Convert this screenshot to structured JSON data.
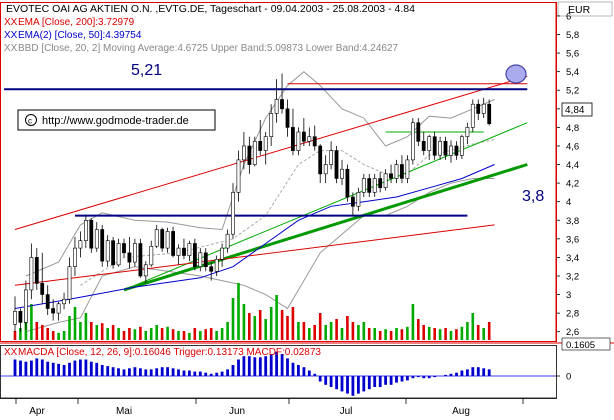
{
  "chart_data": [
    {
      "type": "candlestick",
      "title": "EVOTEC OAI AG AKTIEN O.N. ,EVTG.DE, Tageschart - 09.04.2003 - 25.08.2003 - 4.84",
      "currency": "EUR",
      "y_ticks": [
        "6",
        "5,8",
        "5,6",
        "5,4",
        "5,2",
        "5",
        "4,8",
        "4,6",
        "4,4",
        "4,2",
        "4",
        "3,8",
        "3,6",
        "3,4",
        "3,2",
        "3",
        "2,8",
        "2,6"
      ],
      "ylim": [
        2.5,
        6.15
      ],
      "x_ticks": [
        "Apr",
        "Mai",
        "Jun",
        "Jul",
        "Aug"
      ],
      "last_price_label": "4,84",
      "legend": [
        {
          "prefix": "XX",
          "text": "EMA [Close, 200]:3.72979",
          "color": "#dd0000"
        },
        {
          "prefix": "XX",
          "text": "EMA(2) [Close, 50]:4.39754",
          "color": "#0000cc"
        },
        {
          "prefix": "XX",
          "text": "BBD [Close, 20, 2] Moving Average:4.6725 Upper Band:5.09873 Lower Band:4.24627",
          "color": "#888888"
        }
      ],
      "watermark": "http://www.godmode-trader.de",
      "annotations": [
        {
          "text": "5,21",
          "level": 5.21
        },
        {
          "text": "3,8",
          "level": 3.8
        }
      ],
      "candles": [
        [
          2.68,
          2.98,
          2.6,
          2.82
        ],
        [
          2.82,
          2.85,
          2.6,
          2.7
        ],
        [
          2.7,
          3.15,
          2.62,
          3.05
        ],
        [
          3.05,
          3.55,
          2.95,
          3.4
        ],
        [
          3.4,
          3.5,
          3.05,
          3.12
        ],
        [
          3.12,
          3.45,
          2.9,
          3.0
        ],
        [
          3.0,
          3.1,
          2.78,
          2.85
        ],
        [
          2.85,
          2.95,
          2.72,
          2.8
        ],
        [
          2.8,
          2.92,
          2.72,
          2.9
        ],
        [
          2.9,
          3.02,
          2.84,
          2.95
        ],
        [
          2.95,
          3.4,
          2.9,
          3.3
        ],
        [
          3.3,
          3.62,
          3.2,
          3.5
        ],
        [
          3.5,
          3.68,
          3.4,
          3.58
        ],
        [
          3.58,
          3.85,
          3.5,
          3.8
        ],
        [
          3.8,
          3.82,
          3.45,
          3.5
        ],
        [
          3.5,
          3.78,
          3.46,
          3.7
        ],
        [
          3.7,
          3.75,
          3.3,
          3.36
        ],
        [
          3.36,
          3.64,
          3.3,
          3.58
        ],
        [
          3.58,
          3.62,
          3.28,
          3.32
        ],
        [
          3.32,
          3.6,
          3.3,
          3.55
        ],
        [
          3.55,
          3.6,
          3.4,
          3.45
        ],
        [
          3.45,
          3.62,
          3.28,
          3.35
        ],
        [
          3.35,
          3.6,
          3.3,
          3.55
        ],
        [
          3.55,
          3.6,
          3.18,
          3.2
        ],
        [
          3.2,
          3.36,
          3.12,
          3.32
        ],
        [
          3.32,
          3.58,
          3.3,
          3.52
        ],
        [
          3.52,
          3.75,
          3.5,
          3.7
        ],
        [
          3.7,
          3.72,
          3.46,
          3.5
        ],
        [
          3.5,
          3.72,
          3.45,
          3.68
        ],
        [
          3.68,
          3.73,
          3.4,
          3.42
        ],
        [
          3.42,
          3.54,
          3.32,
          3.5
        ],
        [
          3.5,
          3.6,
          3.38,
          3.42
        ],
        [
          3.42,
          3.58,
          3.36,
          3.55
        ],
        [
          3.55,
          3.6,
          3.26,
          3.3
        ],
        [
          3.3,
          3.5,
          3.25,
          3.45
        ],
        [
          3.45,
          3.5,
          3.25,
          3.3
        ],
        [
          3.3,
          3.35,
          3.15,
          3.25
        ],
        [
          3.25,
          3.42,
          3.2,
          3.38
        ],
        [
          3.38,
          3.55,
          3.3,
          3.5
        ],
        [
          3.5,
          3.7,
          3.45,
          3.65
        ],
        [
          3.65,
          4.2,
          3.6,
          4.1
        ],
        [
          4.1,
          4.55,
          4.0,
          4.45
        ],
        [
          4.45,
          4.75,
          4.35,
          4.6
        ],
        [
          4.6,
          4.7,
          4.3,
          4.4
        ],
        [
          4.4,
          4.7,
          4.38,
          4.65
        ],
        [
          4.65,
          4.88,
          4.5,
          4.55
        ],
        [
          4.55,
          4.75,
          4.4,
          4.7
        ],
        [
          4.7,
          5.05,
          4.6,
          4.95
        ],
        [
          4.95,
          5.32,
          4.85,
          5.1
        ],
        [
          5.1,
          5.38,
          4.95,
          5.0
        ],
        [
          5.0,
          5.1,
          4.7,
          4.8
        ],
        [
          4.8,
          5.0,
          4.5,
          4.55
        ],
        [
          4.55,
          4.8,
          4.5,
          4.75
        ],
        [
          4.75,
          4.9,
          4.6,
          4.65
        ],
        [
          4.65,
          4.8,
          4.6,
          4.7
        ],
        [
          4.7,
          4.82,
          4.55,
          4.6
        ],
        [
          4.6,
          4.62,
          4.2,
          4.3
        ],
        [
          4.3,
          4.5,
          4.2,
          4.4
        ],
        [
          4.4,
          4.65,
          4.35,
          4.55
        ],
        [
          4.55,
          4.6,
          4.2,
          4.25
        ],
        [
          4.25,
          4.45,
          4.18,
          4.35
        ],
        [
          4.35,
          4.4,
          4.0,
          4.05
        ],
        [
          4.05,
          4.1,
          3.85,
          3.95
        ],
        [
          3.95,
          4.15,
          3.9,
          4.1
        ],
        [
          4.1,
          4.3,
          4.05,
          4.25
        ],
        [
          4.25,
          4.3,
          4.05,
          4.1
        ],
        [
          4.1,
          4.3,
          4.05,
          4.25
        ],
        [
          4.25,
          4.32,
          4.1,
          4.15
        ],
        [
          4.15,
          4.35,
          4.12,
          4.3
        ],
        [
          4.3,
          4.4,
          4.2,
          4.25
        ],
        [
          4.25,
          4.45,
          4.2,
          4.4
        ],
        [
          4.4,
          4.5,
          4.2,
          4.25
        ],
        [
          4.25,
          4.5,
          4.2,
          4.45
        ],
        [
          4.45,
          4.9,
          4.4,
          4.85
        ],
        [
          4.85,
          4.9,
          4.6,
          4.65
        ],
        [
          4.65,
          4.75,
          4.5,
          4.55
        ],
        [
          4.55,
          4.72,
          4.45,
          4.7
        ],
        [
          4.7,
          4.75,
          4.45,
          4.5
        ],
        [
          4.5,
          4.7,
          4.45,
          4.65
        ],
        [
          4.65,
          4.7,
          4.45,
          4.5
        ],
        [
          4.5,
          4.66,
          4.42,
          4.6
        ],
        [
          4.6,
          4.65,
          4.45,
          4.5
        ],
        [
          4.5,
          4.72,
          4.46,
          4.7
        ],
        [
          4.7,
          4.85,
          4.62,
          4.8
        ],
        [
          4.8,
          5.1,
          4.75,
          5.05
        ],
        [
          5.05,
          5.1,
          4.88,
          4.95
        ],
        [
          4.95,
          5.12,
          4.9,
          5.05
        ],
        [
          5.05,
          5.1,
          4.82,
          4.84
        ]
      ],
      "volume": [
        [
          0.15,
          "r"
        ],
        [
          0.2,
          "g"
        ],
        [
          0.35,
          "g"
        ],
        [
          0.6,
          "g"
        ],
        [
          0.3,
          "r"
        ],
        [
          0.25,
          "r"
        ],
        [
          0.2,
          "r"
        ],
        [
          0.15,
          "r"
        ],
        [
          0.12,
          "g"
        ],
        [
          0.15,
          "g"
        ],
        [
          0.4,
          "g"
        ],
        [
          0.55,
          "g"
        ],
        [
          0.3,
          "g"
        ],
        [
          0.45,
          "g"
        ],
        [
          0.3,
          "r"
        ],
        [
          0.25,
          "g"
        ],
        [
          0.28,
          "r"
        ],
        [
          0.2,
          "g"
        ],
        [
          0.25,
          "r"
        ],
        [
          0.2,
          "g"
        ],
        [
          0.15,
          "r"
        ],
        [
          0.2,
          "r"
        ],
        [
          0.18,
          "g"
        ],
        [
          0.22,
          "r"
        ],
        [
          0.15,
          "g"
        ],
        [
          0.2,
          "g"
        ],
        [
          0.25,
          "g"
        ],
        [
          0.2,
          "r"
        ],
        [
          0.22,
          "g"
        ],
        [
          0.18,
          "r"
        ],
        [
          0.15,
          "g"
        ],
        [
          0.15,
          "r"
        ],
        [
          0.12,
          "g"
        ],
        [
          0.2,
          "r"
        ],
        [
          0.15,
          "g"
        ],
        [
          0.18,
          "r"
        ],
        [
          0.2,
          "r"
        ],
        [
          0.15,
          "g"
        ],
        [
          0.2,
          "g"
        ],
        [
          0.3,
          "g"
        ],
        [
          0.7,
          "g"
        ],
        [
          0.95,
          "g"
        ],
        [
          0.6,
          "g"
        ],
        [
          0.45,
          "r"
        ],
        [
          0.4,
          "g"
        ],
        [
          0.5,
          "r"
        ],
        [
          0.35,
          "g"
        ],
        [
          0.55,
          "g"
        ],
        [
          0.75,
          "g"
        ],
        [
          0.5,
          "r"
        ],
        [
          0.4,
          "r"
        ],
        [
          0.55,
          "r"
        ],
        [
          0.3,
          "g"
        ],
        [
          0.3,
          "r"
        ],
        [
          0.2,
          "g"
        ],
        [
          0.25,
          "r"
        ],
        [
          0.45,
          "r"
        ],
        [
          0.25,
          "g"
        ],
        [
          0.3,
          "g"
        ],
        [
          0.35,
          "r"
        ],
        [
          0.2,
          "g"
        ],
        [
          0.4,
          "r"
        ],
        [
          0.3,
          "r"
        ],
        [
          0.25,
          "g"
        ],
        [
          0.3,
          "g"
        ],
        [
          0.2,
          "r"
        ],
        [
          0.2,
          "g"
        ],
        [
          0.15,
          "r"
        ],
        [
          0.18,
          "g"
        ],
        [
          0.15,
          "r"
        ],
        [
          0.2,
          "g"
        ],
        [
          0.18,
          "r"
        ],
        [
          0.22,
          "g"
        ],
        [
          0.6,
          "g"
        ],
        [
          0.35,
          "r"
        ],
        [
          0.25,
          "r"
        ],
        [
          0.22,
          "g"
        ],
        [
          0.2,
          "r"
        ],
        [
          0.18,
          "g"
        ],
        [
          0.2,
          "r"
        ],
        [
          0.15,
          "g"
        ],
        [
          0.18,
          "r"
        ],
        [
          0.22,
          "g"
        ],
        [
          0.3,
          "g"
        ],
        [
          0.45,
          "g"
        ],
        [
          0.25,
          "r"
        ],
        [
          0.2,
          "g"
        ],
        [
          0.3,
          "r"
        ]
      ],
      "ema200": [
        [
          0,
          3.1
        ],
        [
          88,
          3.75
        ]
      ],
      "ema50": [
        [
          0,
          2.85
        ],
        [
          10,
          2.95
        ],
        [
          22,
          3.08
        ],
        [
          34,
          3.18
        ],
        [
          40,
          3.3
        ],
        [
          46,
          3.55
        ],
        [
          52,
          3.8
        ],
        [
          58,
          3.95
        ],
        [
          64,
          4.0
        ],
        [
          70,
          4.05
        ],
        [
          76,
          4.15
        ],
        [
          82,
          4.25
        ],
        [
          88,
          4.4
        ]
      ],
      "bb_upper": [
        [
          2,
          3.2
        ],
        [
          8,
          3.35
        ],
        [
          12,
          3.75
        ],
        [
          16,
          3.88
        ],
        [
          22,
          3.8
        ],
        [
          28,
          3.78
        ],
        [
          34,
          3.72
        ],
        [
          38,
          3.7
        ],
        [
          42,
          4.4
        ],
        [
          46,
          4.9
        ],
        [
          50,
          5.25
        ],
        [
          53,
          5.4
        ],
        [
          56,
          5.25
        ],
        [
          60,
          5.0
        ],
        [
          64,
          4.9
        ],
        [
          68,
          4.6
        ],
        [
          72,
          4.7
        ],
        [
          76,
          4.92
        ],
        [
          80,
          4.9
        ],
        [
          84,
          5.0
        ],
        [
          88,
          5.1
        ]
      ],
      "bb_lower": [
        [
          2,
          2.6
        ],
        [
          8,
          2.7
        ],
        [
          12,
          2.75
        ],
        [
          16,
          3.2
        ],
        [
          22,
          3.3
        ],
        [
          28,
          3.25
        ],
        [
          34,
          3.2
        ],
        [
          38,
          3.15
        ],
        [
          42,
          3.1
        ],
        [
          46,
          3.0
        ],
        [
          50,
          2.85
        ],
        [
          53,
          3.15
        ],
        [
          56,
          3.45
        ],
        [
          60,
          3.65
        ],
        [
          64,
          3.85
        ],
        [
          68,
          3.85
        ],
        [
          72,
          3.95
        ],
        [
          76,
          4.1
        ],
        [
          80,
          4.2
        ],
        [
          84,
          4.25
        ],
        [
          88,
          4.25
        ]
      ],
      "bb_mid": [
        [
          12,
          3.1
        ],
        [
          20,
          3.4
        ],
        [
          30,
          3.45
        ],
        [
          40,
          3.6
        ],
        [
          46,
          3.85
        ],
        [
          52,
          4.4
        ],
        [
          56,
          4.55
        ],
        [
          60,
          4.55
        ],
        [
          64,
          4.4
        ],
        [
          68,
          4.3
        ],
        [
          72,
          4.3
        ],
        [
          76,
          4.5
        ],
        [
          80,
          4.55
        ],
        [
          84,
          4.62
        ],
        [
          88,
          4.67
        ]
      ],
      "trendlines": [
        {
          "color": "#dd0000",
          "width": 1,
          "from": [
            0,
            3.7
          ],
          "to": [
            94,
            5.35
          ]
        },
        {
          "color": "#00aa00",
          "width": 1,
          "from": [
            20,
            3.05
          ],
          "to": [
            94,
            4.85
          ]
        },
        {
          "color": "#009900",
          "width": 3,
          "from": [
            20,
            3.05
          ],
          "to": [
            94,
            4.4
          ]
        },
        {
          "color": "#00aa00",
          "width": 1,
          "from": [
            68,
            4.75
          ],
          "to": [
            86,
            4.75
          ]
        },
        {
          "color": "#000080",
          "width": 2,
          "from": [
            -2,
            5.21
          ],
          "to": [
            94,
            5.21
          ]
        },
        {
          "color": "#000080",
          "width": 2,
          "from": [
            11,
            3.85
          ],
          "to": [
            83,
            3.85
          ]
        },
        {
          "color": "#dd0000",
          "width": 1,
          "from": [
            50,
            5.27
          ],
          "to": [
            94,
            5.27
          ]
        }
      ]
    },
    {
      "type": "bar",
      "title": "MACDA [Close, 12, 26, 9]:0.16046 Trigger:0.13173 MACDF:0.02873",
      "prefix": "XX",
      "y_ticks": [
        "0.1605",
        "0"
      ],
      "values": [
        0.15,
        0.14,
        0.13,
        0.14,
        0.16,
        0.15,
        0.13,
        0.12,
        0.11,
        0.1,
        0.12,
        0.14,
        0.15,
        0.15,
        0.13,
        0.12,
        0.1,
        0.09,
        0.08,
        0.07,
        0.06,
        0.07,
        0.08,
        0.07,
        0.06,
        0.06,
        0.07,
        0.08,
        0.08,
        0.07,
        0.06,
        0.05,
        0.05,
        0.04,
        0.04,
        0.03,
        0.02,
        0.03,
        0.04,
        0.06,
        0.1,
        0.15,
        0.18,
        0.18,
        0.17,
        0.17,
        0.18,
        0.2,
        0.22,
        0.2,
        0.16,
        0.12,
        0.1,
        0.08,
        0.05,
        0.02,
        -0.05,
        -0.08,
        -0.1,
        -0.12,
        -0.14,
        -0.16,
        -0.18,
        -0.16,
        -0.14,
        -0.12,
        -0.1,
        -0.1,
        -0.08,
        -0.08,
        -0.06,
        -0.05,
        -0.04,
        -0.02,
        -0.01,
        -0.02,
        -0.02,
        -0.01,
        0.0,
        0.01,
        0.02,
        0.03,
        0.05,
        0.06,
        0.08,
        0.08,
        0.07,
        0.06
      ]
    }
  ]
}
